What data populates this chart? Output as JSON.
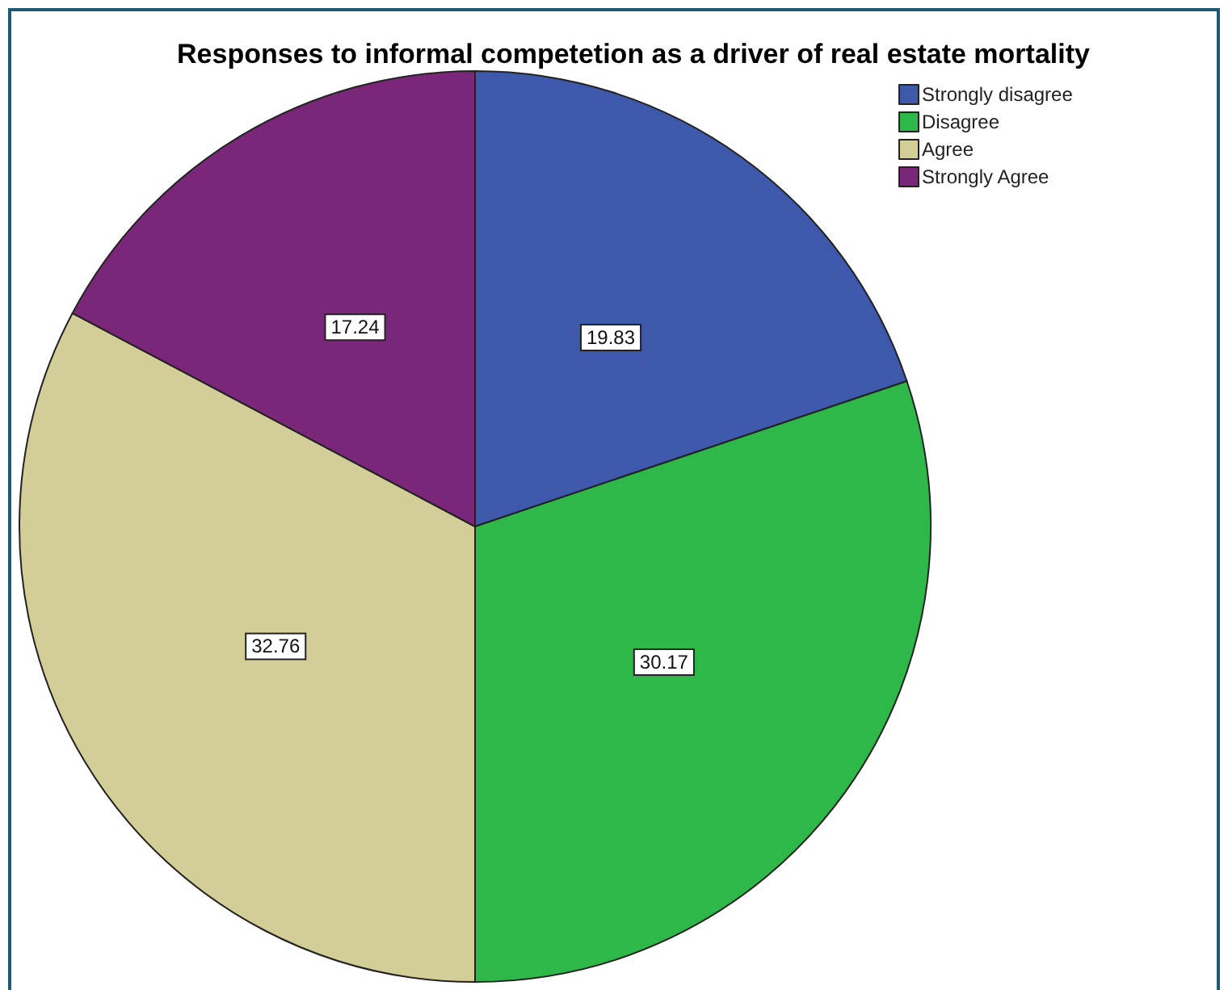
{
  "chart_data": {
    "type": "pie",
    "title": "Responses to informal competetion as a driver of real estate mortality",
    "categories": [
      "Strongly disagree",
      "Disagree",
      "Agree",
      "Strongly Agree"
    ],
    "values": [
      19.83,
      30.17,
      32.76,
      17.24
    ],
    "colors": [
      "#3e58ac",
      "#2eb84a",
      "#d3ce97",
      "#7b2779"
    ],
    "data_labels": true,
    "legend": "top right"
  }
}
